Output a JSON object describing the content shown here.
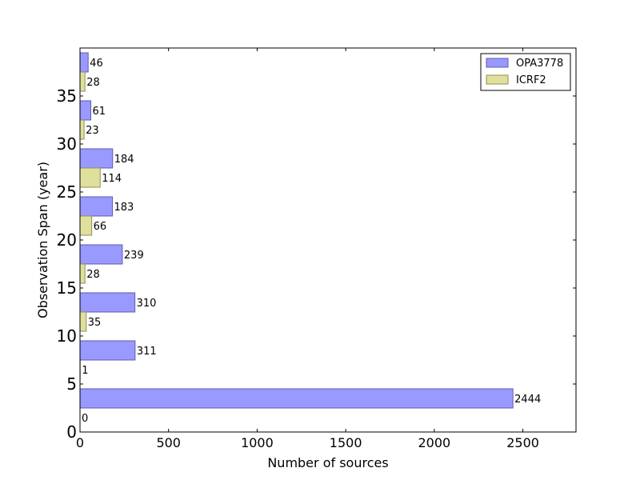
{
  "chart_data": {
    "type": "bar",
    "orientation": "horizontal",
    "title": "",
    "xlabel": "Number of sources",
    "ylabel": "Observation Span (year)",
    "xlim": [
      0,
      2800
    ],
    "ylim": [
      0,
      40
    ],
    "xticks": [
      0,
      500,
      1000,
      1500,
      2000,
      2500
    ],
    "yticks": [
      0,
      5,
      10,
      15,
      20,
      25,
      30,
      35
    ],
    "grid": false,
    "legend_position": "top-right",
    "bins": [
      0,
      5,
      10,
      15,
      20,
      25,
      30,
      35
    ],
    "series": [
      {
        "name": "OPA3778",
        "color": "#9999ff",
        "edge": "#5c5cb0",
        "values": [
          2444,
          311,
          310,
          239,
          183,
          184,
          61,
          46
        ]
      },
      {
        "name": "ICRF2",
        "color": "#e0e09c",
        "edge": "#8f8f55",
        "values": [
          0,
          1,
          35,
          28,
          66,
          114,
          23,
          28
        ]
      }
    ]
  }
}
